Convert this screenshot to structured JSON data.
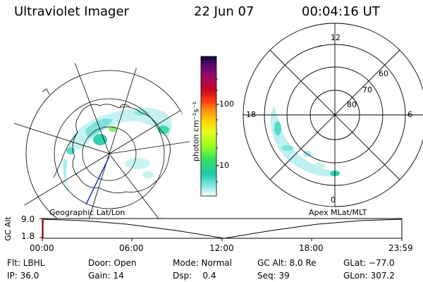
{
  "header": {
    "title": "Ultraviolet Imager",
    "date": "22 Jun 07",
    "time": "00:04:16 UT"
  },
  "left_panel": {
    "caption": "Geographic Lat/Lon"
  },
  "right_panel": {
    "caption": "Apex MLat/MLT",
    "mlt_labels": [
      "12",
      "18",
      "6",
      "0"
    ],
    "lat_labels": [
      "60",
      "70",
      "80"
    ]
  },
  "colorbar": {
    "unit_label": "photon cm⁻²s⁻¹",
    "tick_labels": [
      "100",
      "10"
    ],
    "colors": [
      "#0a0a40",
      "#5a0a6a",
      "#9a0a6a",
      "#c80a20",
      "#ff3a10",
      "#ff8a10",
      "#ffd000",
      "#e8ff20",
      "#9aff20",
      "#30e060",
      "#20c8b0",
      "#7ae8e0",
      "#c8f4f0",
      "#ffffff"
    ]
  },
  "timeline": {
    "ylabel": "GC Alt",
    "y_ticks": [
      "9.0",
      "1.8"
    ],
    "x_ticks": [
      "00:00",
      "06:00",
      "12:00",
      "18:00",
      "23:59"
    ]
  },
  "status": {
    "flt": "Flt: LBHL",
    "ip": "IP: 36.0",
    "door": "Door: Open",
    "gain": "Gain: 14",
    "mode": "Mode: Normal",
    "dsp": "Dsp:    0.4",
    "gcalt": "GC Alt: 8.0 Re",
    "seq": "Seq: 39",
    "glat": "GLat: −77.0",
    "glon": "GLon: 307.2"
  }
}
